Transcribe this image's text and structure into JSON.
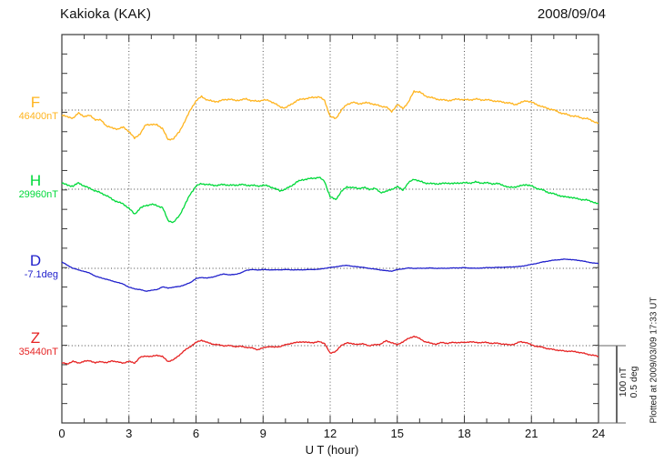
{
  "header": {
    "title": "Kakioka (KAK)",
    "date": "2008/09/04"
  },
  "axis": {
    "x_label": "U T (hour)",
    "x_tick_labels": [
      "0",
      "3",
      "6",
      "9",
      "12",
      "15",
      "18",
      "21",
      "24"
    ]
  },
  "scale_bar": {
    "line1": "100 nT",
    "line2": "0.5 deg"
  },
  "footer_note": "Plotted at 2009/03/09 17:33 UT",
  "chart_data": {
    "type": "line",
    "title": "Kakioka (KAK)",
    "subtitle": "2008/09/04",
    "xlabel": "U T (hour)",
    "x_range": [
      0,
      24
    ],
    "x_tick_major_step": 3,
    "x_tick_minor_step": 1,
    "grid": "dotted vertical gridlines every 3 h; dotted horizontal baseline at each component base value",
    "legend_position": "left margin, one label per trace",
    "scale_division": {
      "nT": 100,
      "deg": 0.5
    },
    "x_start": 0,
    "x_step": 0.25,
    "series": [
      {
        "name": "F",
        "unit": "nT",
        "base": 46400,
        "base_label": "46400nT",
        "color": "#ffb41e",
        "values": [
          46394,
          46391,
          46390,
          46396,
          46392,
          46393,
          46388,
          46387,
          46380,
          46377,
          46376,
          46378,
          46373,
          46364,
          46370,
          46381,
          46382,
          46381,
          46377,
          46362,
          46364,
          46372,
          46386,
          46400,
          46412,
          46417,
          46413,
          46411,
          46411,
          46413,
          46414,
          46412,
          46413,
          46414,
          46412,
          46411,
          46413,
          46412,
          46409,
          46404,
          46403,
          46407,
          46412,
          46414,
          46415,
          46416,
          46417,
          46412,
          46392,
          46389,
          46400,
          46407,
          46410,
          46408,
          46409,
          46409,
          46407,
          46405,
          46404,
          46398,
          46407,
          46402,
          46410,
          46424,
          46423,
          46418,
          46416,
          46414,
          46413,
          46412,
          46413,
          46414,
          46413,
          46413,
          46414,
          46413,
          46413,
          46412,
          46411,
          46410,
          46409,
          46407,
          46409,
          46412,
          46410,
          46407,
          46404,
          46402,
          46400,
          46397,
          46395,
          46393,
          46392,
          46390,
          46389,
          46386,
          46383
        ]
      },
      {
        "name": "H",
        "unit": "nT",
        "base": 29960,
        "base_label": "29960nT",
        "color": "#00d93a",
        "values": [
          29968,
          29965,
          29964,
          29968,
          29964,
          29961,
          29958,
          29955,
          29952,
          29947,
          29944,
          29941,
          29936,
          29928,
          29936,
          29939,
          29941,
          29939,
          29937,
          29920,
          29918,
          29926,
          29940,
          29954,
          29964,
          29967,
          29966,
          29965,
          29965,
          29966,
          29965,
          29965,
          29966,
          29965,
          29965,
          29964,
          29965,
          29964,
          29961,
          29958,
          29960,
          29964,
          29969,
          29972,
          29973,
          29974,
          29975,
          29970,
          29950,
          29947,
          29957,
          29963,
          29962,
          29961,
          29962,
          29960,
          29961,
          29956,
          29957,
          29960,
          29963,
          29959,
          29968,
          29973,
          29970,
          29968,
          29967,
          29967,
          29967,
          29968,
          29967,
          29968,
          29968,
          29968,
          29969,
          29968,
          29968,
          29967,
          29967,
          29965,
          29962,
          29963,
          29964,
          29966,
          29964,
          29961,
          29959,
          29956,
          29954,
          29952,
          29950,
          29950,
          29948,
          29947,
          29946,
          29944,
          29941
        ]
      },
      {
        "name": "D",
        "unit": "deg",
        "base": -7.1,
        "base_label": "-7.1deg",
        "color": "#2222cc",
        "values": [
          -7.06,
          -7.08,
          -7.1,
          -7.11,
          -7.12,
          -7.13,
          -7.15,
          -7.16,
          -7.17,
          -7.18,
          -7.19,
          -7.2,
          -7.22,
          -7.23,
          -7.235,
          -7.245,
          -7.24,
          -7.235,
          -7.218,
          -7.225,
          -7.22,
          -7.215,
          -7.205,
          -7.19,
          -7.165,
          -7.158,
          -7.162,
          -7.155,
          -7.145,
          -7.135,
          -7.142,
          -7.138,
          -7.13,
          -7.112,
          -7.108,
          -7.11,
          -7.108,
          -7.109,
          -7.11,
          -7.109,
          -7.108,
          -7.109,
          -7.11,
          -7.109,
          -7.108,
          -7.107,
          -7.106,
          -7.1,
          -7.095,
          -7.09,
          -7.085,
          -7.08,
          -7.088,
          -7.09,
          -7.095,
          -7.1,
          -7.105,
          -7.11,
          -7.115,
          -7.118,
          -7.108,
          -7.103,
          -7.098,
          -7.1,
          -7.1,
          -7.099,
          -7.098,
          -7.1,
          -7.1,
          -7.099,
          -7.098,
          -7.097,
          -7.096,
          -7.098,
          -7.1,
          -7.098,
          -7.096,
          -7.095,
          -7.094,
          -7.093,
          -7.092,
          -7.09,
          -7.088,
          -7.082,
          -7.075,
          -7.068,
          -7.06,
          -7.054,
          -7.048,
          -7.045,
          -7.042,
          -7.044,
          -7.048,
          -7.052,
          -7.06,
          -7.065,
          -7.07
        ]
      },
      {
        "name": "Z",
        "unit": "nT",
        "base": 35440,
        "base_label": "35440nT",
        "color": "#e62222",
        "values": [
          35418,
          35417,
          35420,
          35418,
          35420,
          35421,
          35418,
          35420,
          35418,
          35421,
          35419,
          35418,
          35420,
          35418,
          35425,
          35427,
          35426,
          35428,
          35426,
          35420,
          35422,
          35428,
          35434,
          35439,
          35444,
          35447,
          35444,
          35442,
          35441,
          35440,
          35440,
          35439,
          35439,
          35438,
          35437,
          35435,
          35437,
          35439,
          35438,
          35439,
          35441,
          35443,
          35444,
          35445,
          35444,
          35444,
          35445,
          35443,
          35430,
          35433,
          35440,
          35444,
          35442,
          35442,
          35442,
          35440,
          35441,
          35442,
          35446,
          35444,
          35441,
          35445,
          35449,
          35452,
          35449,
          35445,
          35443,
          35442,
          35444,
          35443,
          35444,
          35444,
          35444,
          35445,
          35444,
          35444,
          35444,
          35443,
          35443,
          35442,
          35441,
          35442,
          35445,
          35444,
          35441,
          35439,
          35438,
          35436,
          35435,
          35434,
          35433,
          35433,
          35432,
          35431,
          35429,
          35428,
          35426
        ]
      }
    ]
  }
}
